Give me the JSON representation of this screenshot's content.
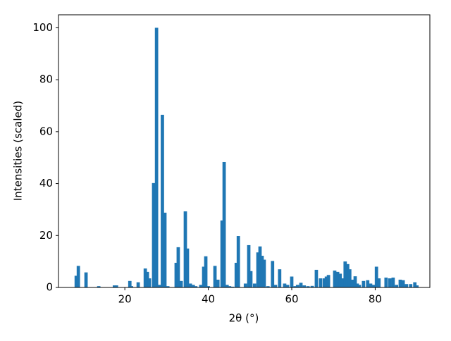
{
  "chart_data": {
    "type": "bar",
    "x_label": "2θ (°)",
    "y_label": "Intensities (scaled)",
    "x": [
      8.35,
      8.86,
      10.7,
      13.75,
      17.5,
      18,
      21.2,
      21.6,
      23.2,
      24.9,
      25.4,
      25.9,
      26.9,
      27.6,
      28.3,
      29,
      29.6,
      30.3,
      32.3,
      32.8,
      33.5,
      34.5,
      35,
      35.7,
      36.4,
      37,
      38.2,
      38.9,
      39.4,
      40,
      41.6,
      42.3,
      43.3,
      43.8,
      44.5,
      45.1,
      45.8,
      46.7,
      47.2,
      48.9,
      49.7,
      50.2,
      51.1,
      51.9,
      52.4,
      52.9,
      53.4,
      54.3,
      55.4,
      56.1,
      57.1,
      58.3,
      59,
      60,
      60.8,
      61.4,
      62.2,
      63,
      63.9,
      64.9,
      65.9,
      66.9,
      67.8,
      68.3,
      68.8,
      70.3,
      71,
      71.6,
      72.2,
      72.8,
      73.4,
      73.9,
      74.5,
      75.2,
      75.7,
      76.2,
      77.2,
      78.2,
      78.9,
      79.6,
      80.3,
      80.9,
      82.6,
      83.5,
      84.3,
      85.1,
      86,
      86.7,
      87.5,
      88.5,
      89.5,
      90
    ],
    "values": [
      4.5,
      8.3,
      5.8,
      0.5,
      0.8,
      0.8,
      2.5,
      0.5,
      2.0,
      7.3,
      6,
      3.5,
      40.2,
      100,
      1,
      66.5,
      28.8,
      0.5,
      9.5,
      15.5,
      2.5,
      29.3,
      15,
      1.5,
      1.0,
      0.5,
      1,
      8,
      12,
      0.5,
      8.3,
      3,
      25.8,
      48.3,
      1,
      0.5,
      0.3,
      9.5,
      19.8,
      1.5,
      16.3,
      6.3,
      1.5,
      13.5,
      15.8,
      12.2,
      10.7,
      0.5,
      10.2,
      1,
      7,
      1.5,
      1,
      4.2,
      0.5,
      1,
      1.8,
      0.8,
      0.5,
      0.6,
      6.8,
      3.5,
      3.5,
      4.2,
      4.8,
      6.5,
      6,
      5.3,
      3.5,
      10,
      9,
      7,
      3,
      4.3,
      1.5,
      1,
      2.5,
      2.8,
      1.5,
      1,
      8,
      3.5,
      3.8,
      3.5,
      3.8,
      1,
      3,
      2.8,
      1.3,
      1.3,
      2,
      0.8
    ],
    "color": "#1f77b4",
    "xlim": [
      4.1,
      93.1
    ],
    "ylim": [
      0,
      105
    ],
    "xticks": [
      20,
      40,
      60,
      80
    ],
    "yticks": [
      0,
      20,
      40,
      60,
      80,
      100
    ],
    "grid": false
  }
}
